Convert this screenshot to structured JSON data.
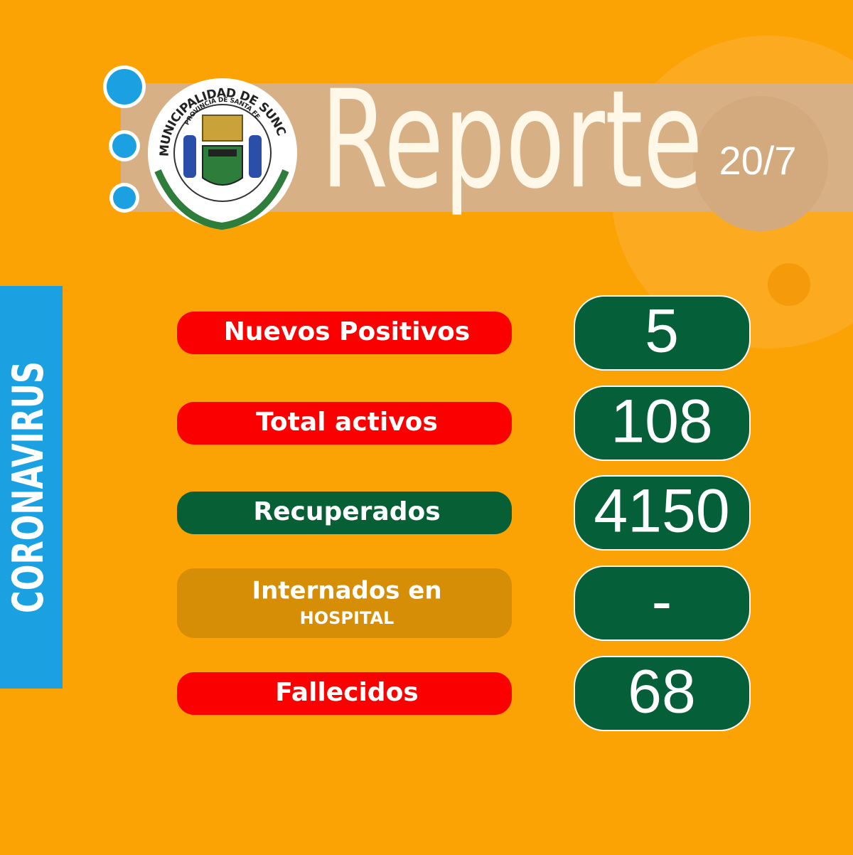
{
  "header": {
    "title": "Reporte",
    "date": "20/7"
  },
  "logo": {
    "top_text": "MUNICIPALIDAD DE SUNCHALES",
    "inner_text": "PROVINCIA DE SANTA FE"
  },
  "side_label": "CORONAVIRUS",
  "rows": [
    {
      "label": "Nuevos Positivos",
      "value": 5
    },
    {
      "label": "Total activos",
      "value": 108
    },
    {
      "label": "Recuperados",
      "value": 4150
    },
    {
      "label": "Internados en",
      "sublabel": "HOSPITAL",
      "value": "-"
    },
    {
      "label": "Fallecidos",
      "value": 68
    }
  ]
}
